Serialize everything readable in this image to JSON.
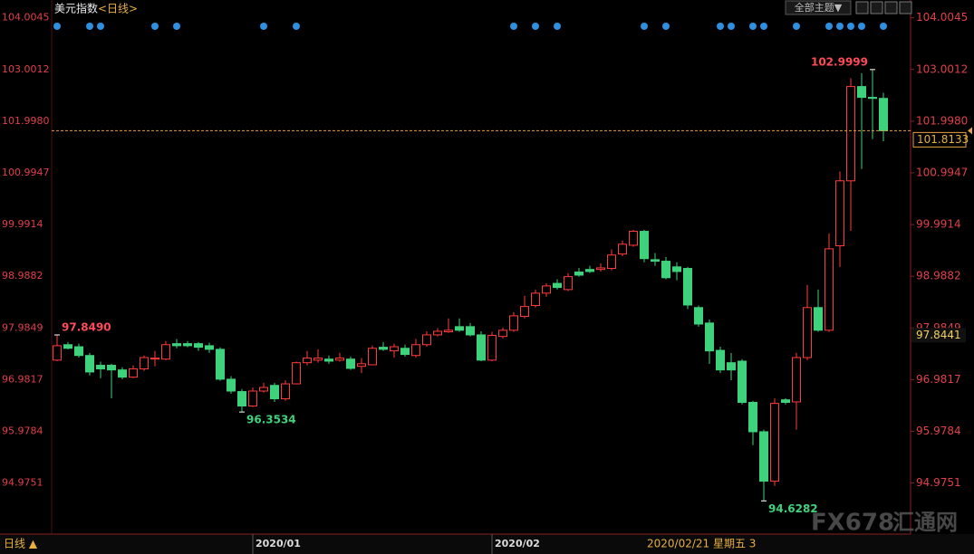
{
  "chart_data": {
    "type": "candlestick",
    "title": "美元指数",
    "subtitle": "<日线>",
    "toolbar_button": "全部主题▼",
    "period_button": "日线 ▲",
    "cursor_date": "2020/02/21 星期五 3",
    "watermark": {
      "brand": "FX678",
      "name": "汇通网"
    },
    "up_color": "#ff3c3c",
    "down_color": "#3fd27d",
    "ylim": [
      94.3,
      104.35
    ],
    "yticks": [
      104.0045,
      103.0012,
      {
        "value": 101.998,
        "label": "101.9980"
      },
      100.9947,
      99.9914,
      98.9882,
      97.9849,
      96.9817,
      95.9784,
      94.9751
    ],
    "last_price": 101.8133,
    "cursor_price": 97.8441,
    "categories": [
      null,
      null,
      null,
      null,
      null,
      null,
      null,
      null,
      null,
      null,
      null,
      null,
      null,
      null,
      null,
      null,
      null,
      null,
      "2020/01",
      null,
      null,
      null,
      null,
      null,
      null,
      null,
      null,
      null,
      null,
      null,
      null,
      null,
      null,
      null,
      null,
      null,
      null,
      null,
      null,
      null,
      "2020/02",
      null,
      null,
      null,
      null,
      null,
      null,
      null,
      null,
      null,
      null,
      null,
      null,
      null,
      null,
      null,
      null,
      null,
      null,
      null,
      null,
      null,
      null,
      null,
      null,
      null,
      null,
      null,
      null,
      null,
      null,
      null,
      null,
      null,
      null,
      null,
      null
    ],
    "open": [
      97.36,
      97.66,
      97.62,
      97.45,
      97.26,
      97.26,
      97.17,
      97.03,
      97.19,
      97.38,
      97.38,
      97.68,
      97.68,
      97.68,
      97.64,
      97.57,
      96.99,
      96.75,
      96.47,
      96.76,
      96.87,
      96.61,
      96.9,
      97.31,
      97.36,
      97.38,
      97.36,
      97.38,
      97.24,
      97.27,
      97.61,
      97.54,
      97.59,
      97.45,
      97.66,
      97.85,
      97.91,
      98.01,
      98.01,
      97.85,
      97.36,
      97.82,
      97.94,
      98.21,
      98.42,
      98.66,
      98.85,
      98.73,
      99.07,
      99.12,
      99.12,
      99.14,
      99.42,
      99.59,
      99.86,
      99.31,
      99.28,
      99.17,
      99.14,
      98.38,
      98.08,
      97.55,
      97.31,
      97.34,
      96.54,
      95.97,
      95.01,
      96.59,
      96.55,
      97.41,
      98.38,
      97.94,
      99.58,
      100.84,
      102.67,
      102.46,
      102.44
    ],
    "high": [
      97.849,
      97.71,
      97.68,
      97.5,
      97.33,
      97.29,
      97.22,
      97.26,
      97.45,
      97.54,
      97.73,
      97.77,
      97.73,
      97.71,
      97.7,
      97.61,
      97.05,
      96.8,
      96.83,
      96.92,
      96.92,
      96.97,
      97.33,
      97.54,
      97.57,
      97.45,
      97.5,
      97.43,
      97.4,
      97.64,
      97.71,
      97.68,
      97.66,
      97.77,
      97.92,
      97.98,
      98.17,
      98.17,
      98.08,
      97.92,
      97.91,
      97.99,
      98.29,
      98.61,
      98.73,
      98.85,
      98.93,
      99.05,
      99.15,
      99.19,
      99.24,
      99.51,
      99.68,
      99.89,
      99.89,
      99.44,
      99.36,
      99.26,
      99.17,
      98.42,
      98.15,
      97.62,
      97.5,
      97.38,
      96.57,
      96.01,
      96.62,
      96.62,
      97.5,
      98.82,
      98.73,
      99.82,
      101.02,
      102.83,
      102.93,
      102.9999,
      102.55
    ],
    "low": [
      97.34,
      97.57,
      97.41,
      97.06,
      97.01,
      96.62,
      96.99,
      97.01,
      97.15,
      97.24,
      97.36,
      97.59,
      97.61,
      97.54,
      97.5,
      96.96,
      96.71,
      96.3534,
      96.45,
      96.73,
      96.55,
      96.57,
      96.89,
      97.26,
      97.31,
      97.29,
      97.33,
      97.17,
      97.11,
      97.26,
      97.54,
      97.41,
      97.43,
      97.41,
      97.62,
      97.82,
      97.89,
      97.91,
      97.82,
      97.34,
      97.34,
      97.78,
      97.91,
      98.17,
      98.38,
      98.59,
      98.73,
      98.7,
      98.98,
      99.05,
      99.08,
      99.1,
      99.38,
      99.56,
      99.26,
      99.19,
      98.93,
      98.91,
      98.35,
      98.01,
      97.29,
      97.11,
      96.97,
      96.5,
      95.71,
      94.6282,
      94.92,
      96.5,
      96.01,
      97.36,
      97.91,
      97.91,
      99.17,
      99.87,
      101.07,
      101.65,
      101.61
    ],
    "close": [
      97.64,
      97.59,
      97.45,
      97.13,
      97.19,
      97.17,
      97.03,
      97.19,
      97.41,
      97.4,
      97.66,
      97.64,
      97.64,
      97.61,
      97.57,
      96.99,
      96.76,
      96.47,
      96.76,
      96.83,
      96.61,
      96.9,
      97.31,
      97.4,
      97.4,
      97.34,
      97.4,
      97.2,
      97.29,
      97.59,
      97.57,
      97.62,
      97.47,
      97.66,
      97.85,
      97.92,
      97.94,
      97.94,
      97.85,
      97.36,
      97.84,
      97.94,
      98.22,
      98.4,
      98.66,
      98.8,
      98.77,
      98.98,
      99.01,
      99.08,
      99.15,
      99.4,
      99.61,
      99.86,
      99.33,
      99.28,
      98.96,
      99.08,
      98.43,
      98.06,
      97.54,
      97.17,
      97.17,
      96.54,
      95.97,
      95.01,
      96.52,
      96.54,
      97.41,
      98.38,
      97.94,
      99.52,
      100.84,
      102.67,
      102.46,
      102.44,
      101.8133
    ],
    "high_labels": [
      "97.8490",
      null,
      null,
      null,
      null,
      null,
      null,
      null,
      null,
      null,
      null,
      null,
      null,
      null,
      null,
      null,
      null,
      null,
      null,
      null,
      null,
      null,
      null,
      null,
      null,
      null,
      null,
      null,
      null,
      null,
      null,
      null,
      null,
      null,
      null,
      null,
      null,
      null,
      null,
      null,
      null,
      null,
      null,
      null,
      null,
      null,
      null,
      null,
      null,
      null,
      null,
      null,
      null,
      null,
      null,
      null,
      null,
      null,
      null,
      null,
      null,
      null,
      null,
      null,
      null,
      null,
      null,
      null,
      null,
      null,
      null,
      null,
      null,
      null,
      null,
      "102.9999",
      null
    ],
    "low_labels": [
      null,
      null,
      null,
      null,
      null,
      null,
      null,
      null,
      null,
      null,
      null,
      null,
      null,
      null,
      null,
      null,
      null,
      "96.3534",
      null,
      null,
      null,
      null,
      null,
      null,
      null,
      null,
      null,
      null,
      null,
      null,
      null,
      null,
      null,
      null,
      null,
      null,
      null,
      null,
      null,
      null,
      null,
      null,
      null,
      null,
      null,
      null,
      null,
      null,
      null,
      null,
      null,
      null,
      null,
      null,
      null,
      null,
      null,
      null,
      null,
      null,
      null,
      null,
      null,
      null,
      null,
      "94.6282",
      null,
      null,
      null,
      null,
      null,
      null,
      null,
      null,
      null,
      null,
      null
    ]
  }
}
